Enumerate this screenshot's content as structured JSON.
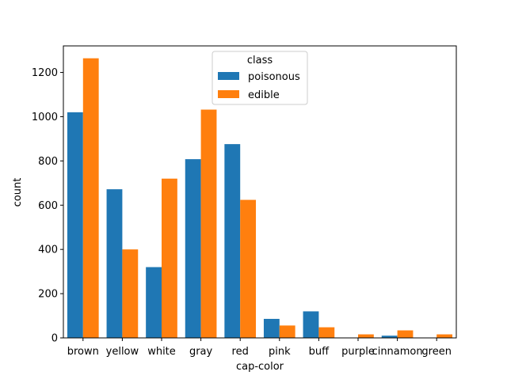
{
  "chart_data": {
    "type": "bar",
    "xlabel": "cap-color",
    "ylabel": "count",
    "categories": [
      "brown",
      "yellow",
      "white",
      "gray",
      "red",
      "pink",
      "buff",
      "purple",
      "cinnamon",
      "green"
    ],
    "ylim": [
      0,
      1320
    ],
    "yticks": [
      0,
      200,
      400,
      600,
      800,
      1000,
      1200
    ],
    "grid": false,
    "legend": {
      "title": "class",
      "placement": "top-center"
    },
    "series": [
      {
        "name": "poisonous",
        "color": "#1f77b4",
        "values": [
          1020,
          672,
          320,
          808,
          876,
          86,
          120,
          0,
          10,
          0
        ]
      },
      {
        "name": "edible",
        "color": "#ff7f0e",
        "values": [
          1264,
          400,
          720,
          1032,
          624,
          56,
          48,
          16,
          34,
          16
        ]
      }
    ]
  }
}
